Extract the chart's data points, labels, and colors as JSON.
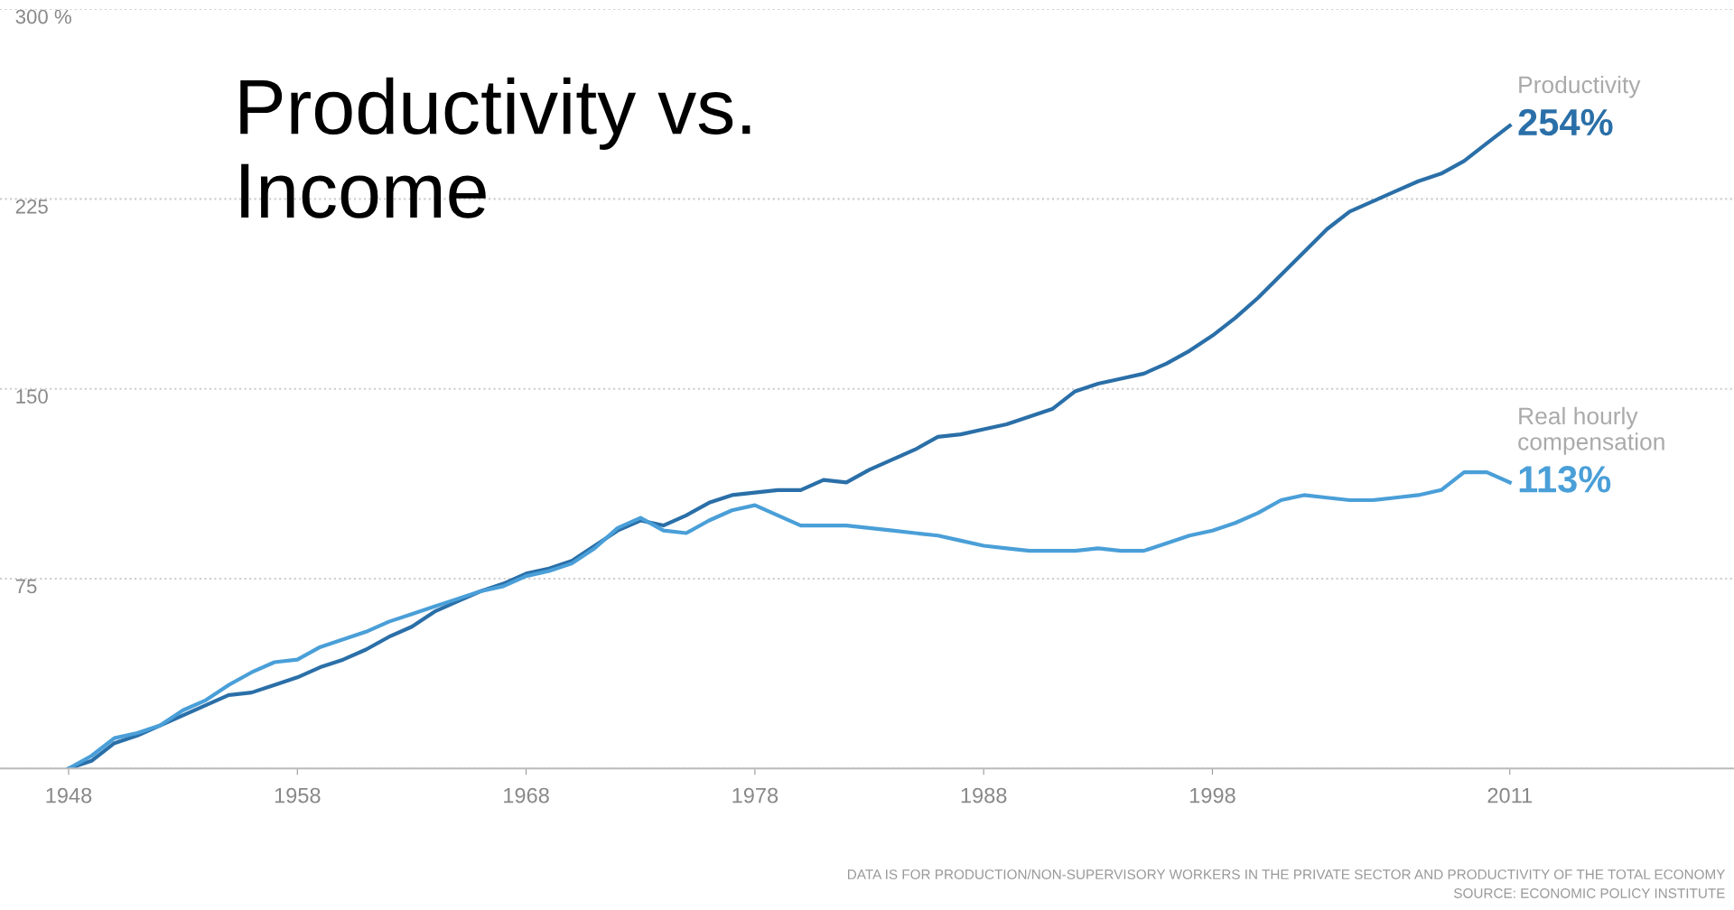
{
  "chart_data": {
    "type": "line",
    "title": "Productivity vs.\nIncome",
    "x": [
      1948,
      1949,
      1950,
      1951,
      1952,
      1953,
      1954,
      1955,
      1956,
      1957,
      1958,
      1959,
      1960,
      1961,
      1962,
      1963,
      1964,
      1965,
      1966,
      1967,
      1968,
      1969,
      1970,
      1971,
      1972,
      1973,
      1974,
      1975,
      1976,
      1977,
      1978,
      1979,
      1980,
      1981,
      1982,
      1983,
      1984,
      1985,
      1986,
      1987,
      1988,
      1989,
      1990,
      1991,
      1992,
      1993,
      1994,
      1995,
      1996,
      1997,
      1998,
      1999,
      2000,
      2001,
      2002,
      2003,
      2004,
      2005,
      2006,
      2007,
      2008,
      2009,
      2010,
      2011
    ],
    "series": [
      {
        "name": "Productivity",
        "color": "#2a6fa8",
        "values": [
          0,
          3,
          10,
          13,
          17,
          21,
          25,
          29,
          30,
          33,
          36,
          40,
          43,
          47,
          52,
          56,
          62,
          66,
          70,
          73,
          77,
          79,
          82,
          88,
          94,
          98,
          96,
          100,
          105,
          108,
          109,
          110,
          110,
          114,
          113,
          118,
          122,
          126,
          131,
          132,
          134,
          136,
          139,
          142,
          149,
          152,
          154,
          156,
          160,
          165,
          171,
          178,
          186,
          195,
          204,
          213,
          220,
          224,
          228,
          232,
          235,
          240,
          247,
          254
        ],
        "value_labels": [
          null,
          null,
          null,
          null,
          null,
          null,
          null,
          null,
          null,
          null,
          null,
          null,
          null,
          null,
          null,
          null,
          null,
          null,
          null,
          null,
          null,
          null,
          null,
          null,
          null,
          null,
          null,
          null,
          null,
          null,
          null,
          null,
          null,
          null,
          null,
          null,
          null,
          null,
          null,
          null,
          null,
          null,
          null,
          null,
          null,
          null,
          null,
          null,
          null,
          null,
          null,
          null,
          null,
          null,
          null,
          null,
          null,
          null,
          null,
          null,
          null,
          null,
          null,
          "254%"
        ]
      },
      {
        "name": "Real hourly compensation",
        "color": "#4a9fd8",
        "values": [
          0,
          5,
          12,
          14,
          17,
          23,
          27,
          33,
          38,
          42,
          43,
          48,
          51,
          54,
          58,
          61,
          64,
          67,
          70,
          72,
          76,
          78,
          81,
          87,
          95,
          99,
          94,
          93,
          98,
          102,
          104,
          100,
          96,
          96,
          96,
          95,
          94,
          93,
          92,
          90,
          88,
          87,
          86,
          86,
          86,
          87,
          86,
          86,
          89,
          92,
          94,
          97,
          101,
          106,
          108,
          107,
          106,
          106,
          107,
          108,
          110,
          117,
          117,
          113
        ],
        "value_labels": [
          null,
          null,
          null,
          null,
          null,
          null,
          null,
          null,
          null,
          null,
          null,
          null,
          null,
          null,
          null,
          null,
          null,
          null,
          null,
          null,
          null,
          null,
          null,
          null,
          null,
          null,
          null,
          null,
          null,
          null,
          null,
          null,
          null,
          null,
          null,
          null,
          null,
          null,
          null,
          null,
          null,
          null,
          null,
          null,
          null,
          null,
          null,
          null,
          null,
          null,
          null,
          null,
          null,
          null,
          null,
          null,
          null,
          null,
          null,
          null,
          null,
          null,
          null,
          "113%"
        ]
      }
    ],
    "xlim": [
      1945,
      2020.8
    ],
    "xticks": [
      1948,
      1958,
      1968,
      1978,
      1988,
      1998,
      2011
    ],
    "ylim": [
      0,
      300
    ],
    "yticks": [
      {
        "value": 0,
        "label": null
      },
      75,
      150,
      225,
      {
        "value": 300,
        "label": "300 %"
      }
    ],
    "grid": "y",
    "line_style": "solid",
    "marker": "none",
    "annotations": [
      "DATA IS FOR PRODUCTION/NON-SUPERVISORY WORKERS IN THE PRIVATE SECTOR AND PRODUCTIVITY OF THE TOTAL ECONOMY\nSOURCE: ECONOMIC POLICY INSTITUTE"
    ]
  }
}
